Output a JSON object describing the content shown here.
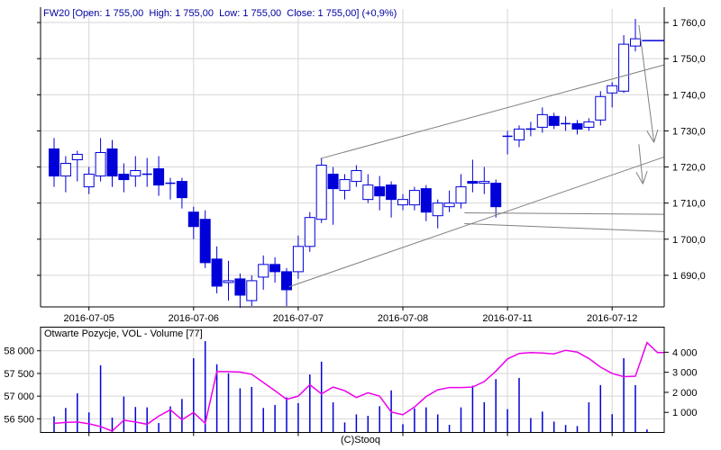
{
  "price_panel": {
    "title": "FW20 [Open: 1 755,00  High: 1 755,00  Low: 1 755,00  Close: 1 755,00] (+0,9%)"
  },
  "volume_panel": {
    "title": "Otwarte Pozycje, VOL - Volume [77]"
  },
  "footer": "(C)Stooq",
  "colors": {
    "candle_blue": "#0000d8",
    "volume_bar_blue": "#0000d8",
    "open_interest_magenta": "#ee00ee",
    "grid_gray": "#d6d6d6",
    "annotation_gray": "#808080",
    "title_navy": "#0000a0",
    "axis_black": "#000000",
    "background": "#ffffff"
  },
  "chart_data": [
    {
      "type": "candlestick",
      "title": "FW20 [Open: 1 755,00  High: 1 755,00  Low: 1 755,00  Close: 1 755,00] (+0,9%)",
      "ylim": [
        1681.25,
        1763.75
      ],
      "y_tick_values": [
        1760,
        1750,
        1740,
        1730,
        1720,
        1710,
        1700,
        1690
      ],
      "y_tick_labels": [
        "1 760,0",
        "1 750,0",
        "1 740,0",
        "1 730,0",
        "1 720,0",
        "1 710,0",
        "1 700,0",
        "1 690,0"
      ],
      "x_tick_labels": [
        "2016-07-05",
        "2016-07-06",
        "2016-07-07",
        "2016-07-08",
        "2016-07-11",
        "2016-07-12"
      ],
      "day_tick_indices": [
        3,
        12,
        21,
        30,
        39,
        48
      ],
      "grid": true,
      "candles_ohlc": [
        [
          1725,
          1728,
          1714.5,
          1717.5
        ],
        [
          1717.5,
          1723,
          1713,
          1721
        ],
        [
          1722,
          1724.5,
          1716,
          1723.5
        ],
        [
          1714.5,
          1720,
          1712.5,
          1718
        ],
        [
          1717.5,
          1728,
          1716,
          1724
        ],
        [
          1725,
          1727.5,
          1714.5,
          1717.5
        ],
        [
          1718,
          1721,
          1713,
          1716.5
        ],
        [
          1717.5,
          1723,
          1714.5,
          1719
        ],
        [
          1718,
          1722.5,
          1714.5,
          1718
        ],
        [
          1719.5,
          1723,
          1712,
          1715
        ],
        [
          1715.5,
          1717,
          1711,
          1715.5
        ],
        [
          1716,
          1717,
          1708.5,
          1711.5
        ],
        [
          1707.5,
          1709,
          1700,
          1703.5
        ],
        [
          1705.5,
          1708,
          1692,
          1693.5
        ],
        [
          1694.5,
          1698,
          1685,
          1687
        ],
        [
          1688,
          1694,
          1683,
          1688.5
        ],
        [
          1689,
          1690.5,
          1681,
          1684.5
        ],
        [
          1683,
          1690,
          1681.5,
          1688.5
        ],
        [
          1689.5,
          1695.5,
          1686,
          1693
        ],
        [
          1693,
          1695,
          1688,
          1691
        ],
        [
          1691,
          1692,
          1681.5,
          1686
        ],
        [
          1691,
          1701,
          1689,
          1698
        ],
        [
          1698,
          1707.5,
          1696.5,
          1706
        ],
        [
          1705.5,
          1722.5,
          1704.5,
          1720.5
        ],
        [
          1718,
          1720,
          1704,
          1714
        ],
        [
          1713.5,
          1718,
          1711,
          1716.5
        ],
        [
          1716,
          1720.5,
          1714.5,
          1719
        ],
        [
          1711,
          1718,
          1710,
          1715
        ],
        [
          1714.5,
          1717.5,
          1708,
          1712
        ],
        [
          1715,
          1716,
          1706,
          1711
        ],
        [
          1709.5,
          1712.5,
          1708,
          1711
        ],
        [
          1709.5,
          1714.5,
          1708,
          1713.5
        ],
        [
          1714,
          1715,
          1705,
          1707.5
        ],
        [
          1706.5,
          1711,
          1703,
          1710
        ],
        [
          1709,
          1713.5,
          1707.5,
          1710
        ],
        [
          1710,
          1718,
          1708.5,
          1714.5
        ],
        [
          1716,
          1722,
          1713,
          1715.5
        ],
        [
          1715.5,
          1720,
          1712.5,
          1716
        ],
        [
          1715.5,
          1716.5,
          1706,
          1709
        ],
        [
          1728.5,
          1730,
          1723.5,
          1728.5
        ],
        [
          1727.5,
          1731.5,
          1725.5,
          1730.5
        ],
        [
          1730.5,
          1732.5,
          1728.5,
          1730.5
        ],
        [
          1731,
          1736.5,
          1729.5,
          1734.5
        ],
        [
          1734,
          1735,
          1730.5,
          1731.5
        ],
        [
          1732,
          1734,
          1730,
          1732
        ],
        [
          1732,
          1733,
          1729,
          1730.5
        ],
        [
          1731,
          1733.5,
          1730,
          1732.5
        ],
        [
          1733,
          1741,
          1731.5,
          1739.5
        ],
        [
          1740.5,
          1743.5,
          1736.5,
          1742.5
        ],
        [
          1741,
          1756.5,
          1740.5,
          1754
        ],
        [
          1753.5,
          1761,
          1752,
          1755.5
        ],
        [
          1755,
          1755,
          1755,
          1755
        ]
      ],
      "last_price_marker": {
        "price": 1755,
        "i_from": 51.4,
        "i_to": 52.5
      },
      "trendlines": [
        {
          "i1": 22.9,
          "p1": 1722.3,
          "i2": 52.5,
          "p2": 1748.3
        },
        {
          "i1": 20.2,
          "p1": 1686.8,
          "i2": 52.5,
          "p2": 1722.8
        },
        {
          "i1": 35.3,
          "p1": 1707.3,
          "i2": 52.5,
          "p2": 1706.9
        },
        {
          "i1": 35.3,
          "p1": 1704.3,
          "i2": 52.5,
          "p2": 1702.1
        }
      ],
      "arrows": [
        {
          "i1": 50.3,
          "p1": 1759.3,
          "i2": 51.6,
          "p2": 1726.8
        },
        {
          "i1": 50.3,
          "p1": 1726.3,
          "i2": 50.65,
          "p2": 1715.3
        }
      ]
    },
    {
      "type": "bar+line",
      "title": "Otwarte Pozycje, VOL - Volume [77]",
      "left_axis": {
        "series": "open_interest",
        "ylim": [
          56200,
          58520
        ],
        "tick_values": [
          58000,
          57500,
          57000,
          56500
        ],
        "tick_labels": [
          "58 000",
          "57 500",
          "57 000",
          "56 500"
        ]
      },
      "right_axis": {
        "series": "volume",
        "ylim": [
          0,
          5250
        ],
        "tick_values": [
          4000,
          3000,
          2000,
          1000
        ],
        "tick_labels": [
          "4 000",
          "3 000",
          "2 000",
          "1 000"
        ]
      },
      "volume": [
        800,
        1220,
        1950,
        1000,
        3350,
        740,
        1790,
        1270,
        1250,
        470,
        1300,
        1670,
        3700,
        4550,
        3400,
        2950,
        2200,
        2270,
        1220,
        1370,
        1750,
        1460,
        2890,
        3530,
        1500,
        500,
        900,
        830,
        1310,
        2100,
        410,
        1200,
        1250,
        900,
        380,
        1250,
        2330,
        1510,
        2660,
        1160,
        2720,
        720,
        1040,
        540,
        370,
        320,
        1500,
        2360,
        910,
        3700,
        2360,
        150
      ],
      "open_interest": [
        56400,
        56420,
        56430,
        56390,
        56330,
        56230,
        56470,
        56430,
        56380,
        56560,
        56700,
        56480,
        56640,
        56400,
        57540,
        57540,
        57530,
        57480,
        57300,
        57120,
        56930,
        57000,
        57250,
        57050,
        57200,
        57120,
        56970,
        57075,
        57000,
        56650,
        56590,
        56760,
        56990,
        57140,
        57190,
        57190,
        57200,
        57320,
        57550,
        57820,
        57940,
        57960,
        57950,
        57930,
        58010,
        57970,
        57830,
        57640,
        57500,
        57430,
        57440,
        58180
      ],
      "open_interest_tail": [
        {
          "i": 51.9,
          "v": 57960
        },
        {
          "i": 52.45,
          "v": 57960
        }
      ]
    }
  ]
}
